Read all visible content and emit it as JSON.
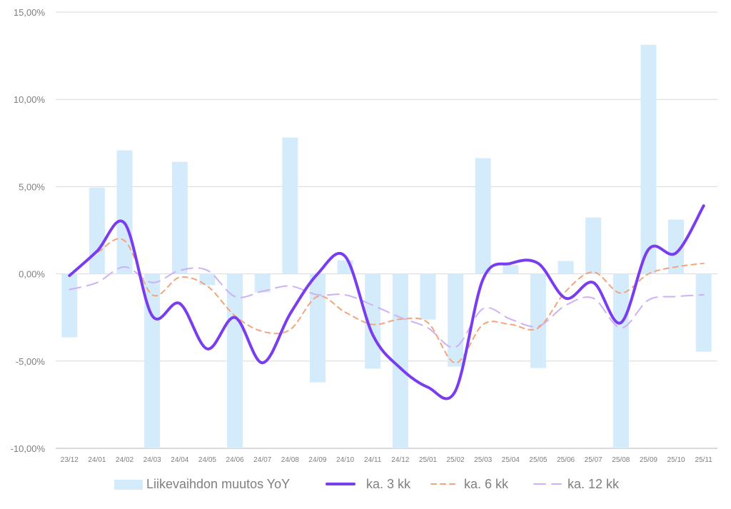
{
  "chart_data": {
    "type": "bar+line",
    "title": "",
    "xlabel": "",
    "ylabel": "",
    "ylim": [
      -10,
      15
    ],
    "yticks": [
      15,
      10,
      5,
      0,
      -5,
      -10
    ],
    "ytick_labels": [
      "15,00%",
      "10,00%",
      "5,00%",
      "0,00%",
      "-5,00%",
      "-10,00%"
    ],
    "grid": true,
    "legend_position": "bottom",
    "categories": [
      "23/12",
      "24/01",
      "24/02",
      "24/03",
      "24/04",
      "24/05",
      "24/06",
      "24/07",
      "24/08",
      "24/09",
      "24/10",
      "24/11",
      "24/12",
      "25/01",
      "25/02",
      "25/03",
      "25/04",
      "25/05",
      "25/06",
      "25/07",
      "25/08",
      "25/09",
      "25/10",
      "25/11"
    ],
    "series": [
      {
        "name": "Liikevaihdon muutos YoY",
        "kind": "bar",
        "color": "#d4ebfc",
        "values": [
          -3.64,
          4.95,
          7.08,
          -10.0,
          6.42,
          -0.65,
          -10.0,
          -1.06,
          7.81,
          -6.22,
          0.78,
          -5.44,
          -10.0,
          -2.62,
          -5.32,
          6.63,
          0.5,
          -5.4,
          0.74,
          3.23,
          -10.0,
          13.13,
          3.11,
          -4.46
        ]
      },
      {
        "name": "ka. 3 kk",
        "kind": "line",
        "style": "solid",
        "color": "#7a3cf0",
        "values": [
          -0.1,
          1.3,
          2.9,
          -2.4,
          -1.7,
          -4.3,
          -2.5,
          -5.1,
          -2.3,
          0.0,
          1.0,
          -3.5,
          -5.4,
          -6.5,
          -6.7,
          -0.3,
          0.6,
          0.6,
          -1.4,
          -0.5,
          -2.8,
          1.4,
          1.2,
          3.9
        ]
      },
      {
        "name": "ka. 6 kk",
        "kind": "line",
        "style": "dashed",
        "color": "#f5a47a",
        "values": [
          -0.1,
          1.2,
          1.9,
          -1.2,
          -0.2,
          -0.7,
          -2.4,
          -3.3,
          -3.2,
          -1.3,
          -2.2,
          -2.9,
          -2.6,
          -2.8,
          -5.1,
          -2.9,
          -2.9,
          -3.1,
          -1.0,
          0.1,
          -1.1,
          0.0,
          0.4,
          0.6
        ]
      },
      {
        "name": "ka. 12 kk",
        "kind": "line",
        "style": "longdash",
        "color": "#cdb0f7",
        "values": [
          -0.9,
          -0.5,
          0.4,
          -0.5,
          0.2,
          0.2,
          -1.3,
          -1.0,
          -0.7,
          -1.2,
          -1.2,
          -1.8,
          -2.5,
          -3.1,
          -4.2,
          -2.0,
          -2.6,
          -3.0,
          -1.8,
          -1.4,
          -3.1,
          -1.5,
          -1.3,
          -1.2
        ]
      }
    ]
  }
}
